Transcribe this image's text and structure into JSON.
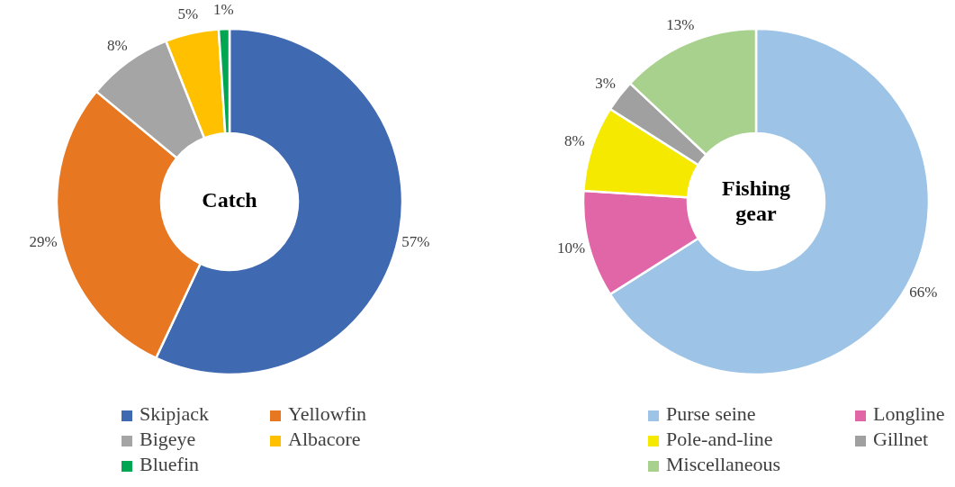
{
  "chart_data": [
    {
      "type": "donut",
      "title": "Catch",
      "categories": [
        "Skipjack",
        "Yellowfin",
        "Bigeye",
        "Albacore",
        "Bluefin"
      ],
      "values": [
        57,
        29,
        8,
        5,
        1
      ],
      "value_labels": [
        "57%",
        "29%",
        "8%",
        "5%",
        "1%"
      ],
      "colors": [
        "#3f69b1",
        "#e87722",
        "#a5a5a5",
        "#ffc000",
        "#00a651"
      ],
      "legend": "bottom"
    },
    {
      "type": "donut",
      "title": "Fishing gear",
      "categories": [
        "Purse seine",
        "Longline",
        "Pole-and-line",
        "Gillnet",
        "Miscellaneous"
      ],
      "values": [
        66,
        10,
        8,
        3,
        13
      ],
      "value_labels": [
        "66%",
        "10%",
        "8%",
        "3%",
        "13%"
      ],
      "colors": [
        "#9dc3e6",
        "#e066a8",
        "#f5e900",
        "#a0a0a0",
        "#a9d18e"
      ],
      "legend": "bottom"
    }
  ]
}
